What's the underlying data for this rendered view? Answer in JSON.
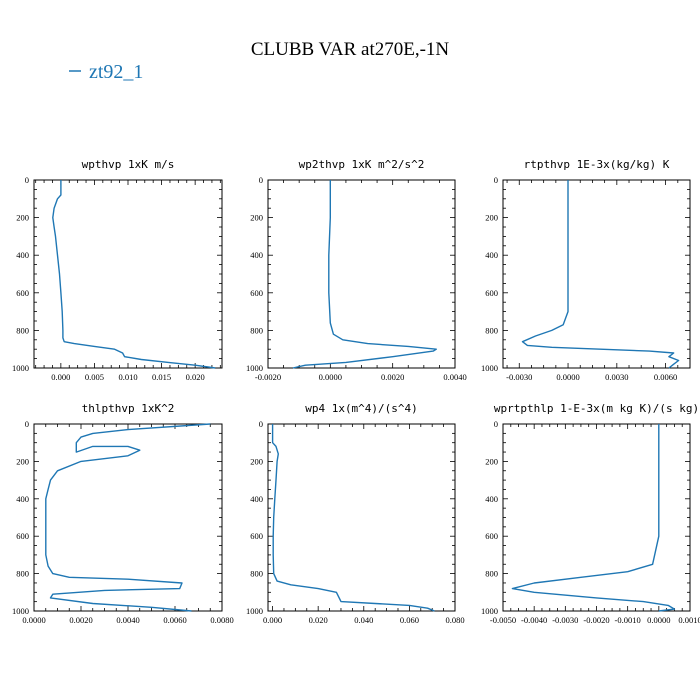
{
  "figure": {
    "title": "CLUBB VAR at270E,-1N",
    "legend_label": "zt92_1",
    "series_color": "#1f77b4"
  },
  "chart_data": [
    {
      "type": "line",
      "title": "wpthvp  1xK m/s",
      "xlabel": "",
      "ylabel": "",
      "xlim": [
        -0.004,
        0.024
      ],
      "ylim": [
        1000,
        0
      ],
      "x_ticks": [
        0.0,
        0.005,
        0.01,
        0.015,
        0.02
      ],
      "x_tick_labels": [
        "0.000",
        "0.005",
        "0.010",
        "0.015",
        "0.020"
      ],
      "y_ticks": [
        0,
        200,
        400,
        600,
        800,
        1000
      ],
      "y_tick_labels": [
        "0",
        "200",
        "400",
        "600",
        "800",
        "1000"
      ],
      "series": [
        {
          "x": [
            0.0,
            0.0,
            -0.0005,
            -0.001,
            -0.0012,
            -0.001,
            -0.0008,
            -0.0005,
            -0.0002,
            0.0,
            0.0002,
            0.0003,
            0.0003,
            0.0005,
            0.002,
            0.005,
            0.008,
            0.0092,
            0.0095,
            0.012,
            0.016,
            0.02,
            0.023
          ],
          "y": [
            0,
            80,
            100,
            150,
            200,
            250,
            300,
            400,
            500,
            600,
            700,
            800,
            840,
            860,
            870,
            885,
            900,
            920,
            940,
            955,
            970,
            985,
            1000
          ]
        }
      ]
    },
    {
      "type": "line",
      "title": "wp2thvp  1xK m^2/s^2",
      "xlabel": "",
      "ylabel": "",
      "xlim": [
        -0.002,
        0.004
      ],
      "ylim": [
        1000,
        0
      ],
      "x_ticks": [
        -0.002,
        0.0,
        0.002,
        0.004
      ],
      "x_tick_labels": [
        "-0.0020",
        "0.0000",
        "0.0020",
        "0.0040"
      ],
      "y_ticks": [
        0,
        200,
        400,
        600,
        800,
        1000
      ],
      "y_tick_labels": [
        "0",
        "200",
        "400",
        "600",
        "800",
        "1000"
      ],
      "series": [
        {
          "x": [
            0.0,
            0.0,
            -5e-05,
            -5e-05,
            0.0,
            0.0001,
            0.0004,
            0.0012,
            0.0025,
            0.0034,
            0.0033,
            0.002,
            0.0005,
            -0.0008,
            -0.0012
          ],
          "y": [
            0,
            200,
            400,
            600,
            760,
            820,
            850,
            870,
            885,
            900,
            910,
            940,
            970,
            985,
            1000
          ]
        }
      ]
    },
    {
      "type": "line",
      "title": "rtpthvp  1E-3x(kg/kg) K",
      "xlabel": "",
      "ylabel": "",
      "xlim": [
        -0.004,
        0.0075
      ],
      "ylim": [
        1000,
        0
      ],
      "x_ticks": [
        -0.003,
        0.0,
        0.003,
        0.006
      ],
      "x_tick_labels": [
        "-0.0030",
        "0.0000",
        "0.0030",
        "0.0060"
      ],
      "y_ticks": [
        0,
        200,
        400,
        600,
        800,
        1000
      ],
      "y_tick_labels": [
        "0",
        "200",
        "400",
        "600",
        "800",
        "1000"
      ],
      "series": [
        {
          "x": [
            0.0,
            0.0,
            0.0,
            -0.0003,
            -0.001,
            -0.002,
            -0.0028,
            -0.0025,
            -0.001,
            0.002,
            0.005,
            0.0065,
            0.0062,
            0.0068,
            0.0065,
            0.0062
          ],
          "y": [
            0,
            200,
            700,
            770,
            800,
            830,
            860,
            880,
            890,
            900,
            910,
            920,
            940,
            960,
            980,
            1000
          ]
        }
      ]
    },
    {
      "type": "line",
      "title": "thlpthvp  1xK^2",
      "xlabel": "",
      "ylabel": "",
      "xlim": [
        0.0,
        0.008
      ],
      "ylim": [
        1000,
        0
      ],
      "x_ticks": [
        0.0,
        0.002,
        0.004,
        0.006,
        0.008
      ],
      "x_tick_labels": [
        "0.0000",
        "0.0020",
        "0.0040",
        "0.0060",
        "0.0080"
      ],
      "y_ticks": [
        0,
        200,
        400,
        600,
        800,
        1000
      ],
      "y_tick_labels": [
        "0",
        "200",
        "400",
        "600",
        "800",
        "1000"
      ],
      "series": [
        {
          "x": [
            0.0075,
            0.004,
            0.0025,
            0.002,
            0.0018,
            0.0018,
            0.0025,
            0.004,
            0.0045,
            0.004,
            0.002,
            0.001,
            0.0007,
            0.0006,
            0.0005,
            0.0005,
            0.0005,
            0.0005,
            0.0006,
            0.0008,
            0.0015,
            0.004,
            0.0063,
            0.0062,
            0.003,
            0.0008,
            0.0007,
            0.0025,
            0.005,
            0.0067
          ],
          "y": [
            0,
            30,
            50,
            70,
            100,
            150,
            120,
            120,
            140,
            170,
            200,
            250,
            300,
            350,
            400,
            500,
            600,
            700,
            760,
            800,
            820,
            830,
            850,
            880,
            890,
            910,
            930,
            960,
            980,
            1000
          ]
        }
      ]
    },
    {
      "type": "line",
      "title": "wp4  1x(m^4)/(s^4)",
      "xlabel": "",
      "ylabel": "",
      "xlim": [
        -0.002,
        0.08
      ],
      "ylim": [
        1000,
        0
      ],
      "x_ticks": [
        0.0,
        0.02,
        0.04,
        0.06,
        0.08
      ],
      "x_tick_labels": [
        "0.000",
        "0.020",
        "0.040",
        "0.060",
        "0.080"
      ],
      "y_ticks": [
        0,
        200,
        400,
        600,
        800,
        1000
      ],
      "y_tick_labels": [
        "0",
        "200",
        "400",
        "600",
        "800",
        "1000"
      ],
      "series": [
        {
          "x": [
            0.0,
            0.0,
            0.0015,
            0.0025,
            0.002,
            0.0015,
            0.001,
            0.0005,
            0.0003,
            0.0003,
            0.0005,
            0.002,
            0.008,
            0.02,
            0.028,
            0.03,
            0.045,
            0.06,
            0.068,
            0.071
          ],
          "y": [
            0,
            100,
            120,
            160,
            200,
            300,
            400,
            500,
            600,
            700,
            800,
            840,
            860,
            880,
            900,
            950,
            960,
            970,
            985,
            1000
          ]
        }
      ]
    },
    {
      "type": "line",
      "title": "wprtpthlp  1-E-3x(m kg K)/(s kg)",
      "xlabel": "",
      "ylabel": "",
      "xlim": [
        -0.005,
        0.001
      ],
      "ylim": [
        1000,
        0
      ],
      "x_ticks": [
        -0.005,
        -0.004,
        -0.003,
        -0.002,
        -0.001,
        0.0,
        0.001
      ],
      "x_tick_labels": [
        "-0.0050",
        "-0.0040",
        "-0.0030",
        "-0.0020",
        "-0.0010",
        "0.0000",
        "0.0010"
      ],
      "y_ticks": [
        0,
        200,
        400,
        600,
        800,
        1000
      ],
      "y_tick_labels": [
        "0",
        "200",
        "400",
        "600",
        "800",
        "1000"
      ],
      "series": [
        {
          "x": [
            0.0,
            0.0,
            0.0,
            -0.0002,
            -0.001,
            -0.0025,
            -0.004,
            -0.0047,
            -0.004,
            -0.002,
            -0.0005,
            0.0003,
            0.0005,
            0.0
          ],
          "y": [
            0,
            200,
            600,
            750,
            790,
            820,
            850,
            880,
            900,
            930,
            950,
            970,
            990,
            1000
          ]
        }
      ]
    }
  ]
}
